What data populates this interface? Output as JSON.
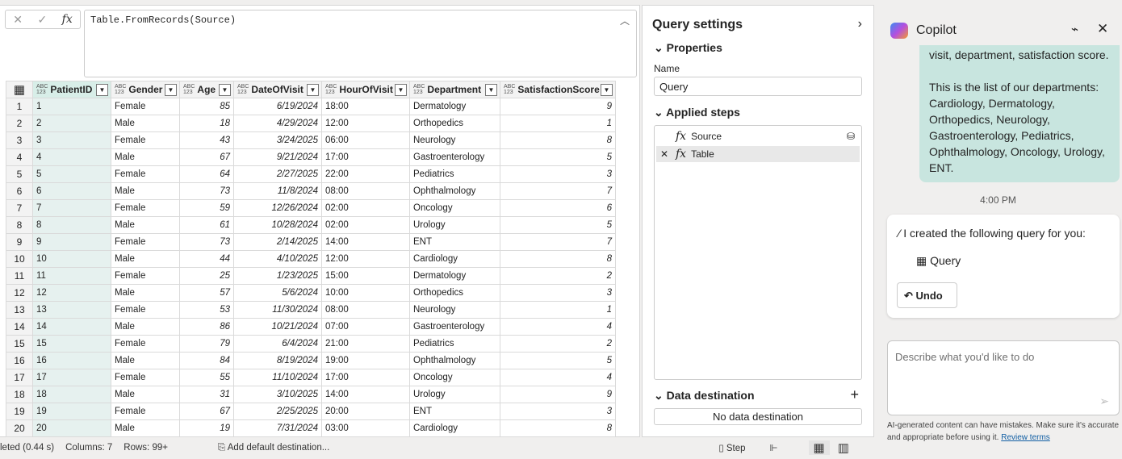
{
  "formula": {
    "text": "Table.FromRecords(Source)"
  },
  "grid": {
    "columns": [
      {
        "name": "PatientID",
        "type": "ABC 123"
      },
      {
        "name": "Gender",
        "type": "ABC 123"
      },
      {
        "name": "Age",
        "type": "ABC 123"
      },
      {
        "name": "DateOfVisit",
        "type": "ABC 123"
      },
      {
        "name": "HourOfVisit",
        "type": "ABC 123"
      },
      {
        "name": "Department",
        "type": "ABC 123"
      },
      {
        "name": "SatisfactionScore",
        "type": "ABC 123"
      }
    ],
    "rows": [
      [
        "1",
        "1",
        "Female",
        "85",
        "6/19/2024",
        "18:00",
        "Dermatology",
        "9"
      ],
      [
        "2",
        "2",
        "Male",
        "18",
        "4/29/2024",
        "12:00",
        "Orthopedics",
        "1"
      ],
      [
        "3",
        "3",
        "Female",
        "43",
        "3/24/2025",
        "06:00",
        "Neurology",
        "8"
      ],
      [
        "4",
        "4",
        "Male",
        "67",
        "9/21/2024",
        "17:00",
        "Gastroenterology",
        "5"
      ],
      [
        "5",
        "5",
        "Female",
        "64",
        "2/27/2025",
        "22:00",
        "Pediatrics",
        "3"
      ],
      [
        "6",
        "6",
        "Male",
        "73",
        "11/8/2024",
        "08:00",
        "Ophthalmology",
        "7"
      ],
      [
        "7",
        "7",
        "Female",
        "59",
        "12/26/2024",
        "02:00",
        "Oncology",
        "6"
      ],
      [
        "8",
        "8",
        "Male",
        "61",
        "10/28/2024",
        "02:00",
        "Urology",
        "5"
      ],
      [
        "9",
        "9",
        "Female",
        "73",
        "2/14/2025",
        "14:00",
        "ENT",
        "7"
      ],
      [
        "10",
        "10",
        "Male",
        "44",
        "4/10/2025",
        "12:00",
        "Cardiology",
        "8"
      ],
      [
        "11",
        "11",
        "Female",
        "25",
        "1/23/2025",
        "15:00",
        "Dermatology",
        "2"
      ],
      [
        "12",
        "12",
        "Male",
        "57",
        "5/6/2024",
        "10:00",
        "Orthopedics",
        "3"
      ],
      [
        "13",
        "13",
        "Female",
        "53",
        "11/30/2024",
        "08:00",
        "Neurology",
        "1"
      ],
      [
        "14",
        "14",
        "Male",
        "86",
        "10/21/2024",
        "07:00",
        "Gastroenterology",
        "4"
      ],
      [
        "15",
        "15",
        "Female",
        "79",
        "6/4/2024",
        "21:00",
        "Pediatrics",
        "2"
      ],
      [
        "16",
        "16",
        "Male",
        "84",
        "8/19/2024",
        "19:00",
        "Ophthalmology",
        "5"
      ],
      [
        "17",
        "17",
        "Female",
        "55",
        "11/10/2024",
        "17:00",
        "Oncology",
        "4"
      ],
      [
        "18",
        "18",
        "Male",
        "31",
        "3/10/2025",
        "14:00",
        "Urology",
        "9"
      ],
      [
        "19",
        "19",
        "Female",
        "67",
        "2/25/2025",
        "20:00",
        "ENT",
        "3"
      ],
      [
        "20",
        "20",
        "Male",
        "19",
        "7/31/2024",
        "03:00",
        "Cardiology",
        "8"
      ]
    ]
  },
  "status": {
    "completed": "leted (0.44 s)",
    "columns": "Columns: 7",
    "rows": "Rows: 99+",
    "add_destination": "Add default destination...",
    "step": "Step"
  },
  "query_settings": {
    "title": "Query settings",
    "properties": "Properties",
    "name_label": "Name",
    "name_value": "Query",
    "applied_steps": "Applied steps",
    "steps": [
      "Source",
      "Table"
    ],
    "data_destination": "Data destination",
    "no_destination": "No data destination"
  },
  "copilot": {
    "title": "Copilot",
    "message_partial": "visit, department, satisfaction score.",
    "message": "This is the list of our departments: Cardiology, Dermatology, Orthopedics, Neurology, Gastroenterology, Pediatrics, Ophthalmology, Oncology, Urology, ENT.",
    "time": "4:00 PM",
    "response": "I created the following query for you:",
    "query_link": "Query",
    "undo": "Undo",
    "placeholder": "Describe what you'd like to do",
    "disclaimer": "AI-generated content can have mistakes. Make sure it's accurate and appropriate before using it.",
    "review_terms": "Review terms"
  },
  "colors": {
    "accent_bubble": "#c8e5df",
    "selected_column": "#d8eee8"
  }
}
